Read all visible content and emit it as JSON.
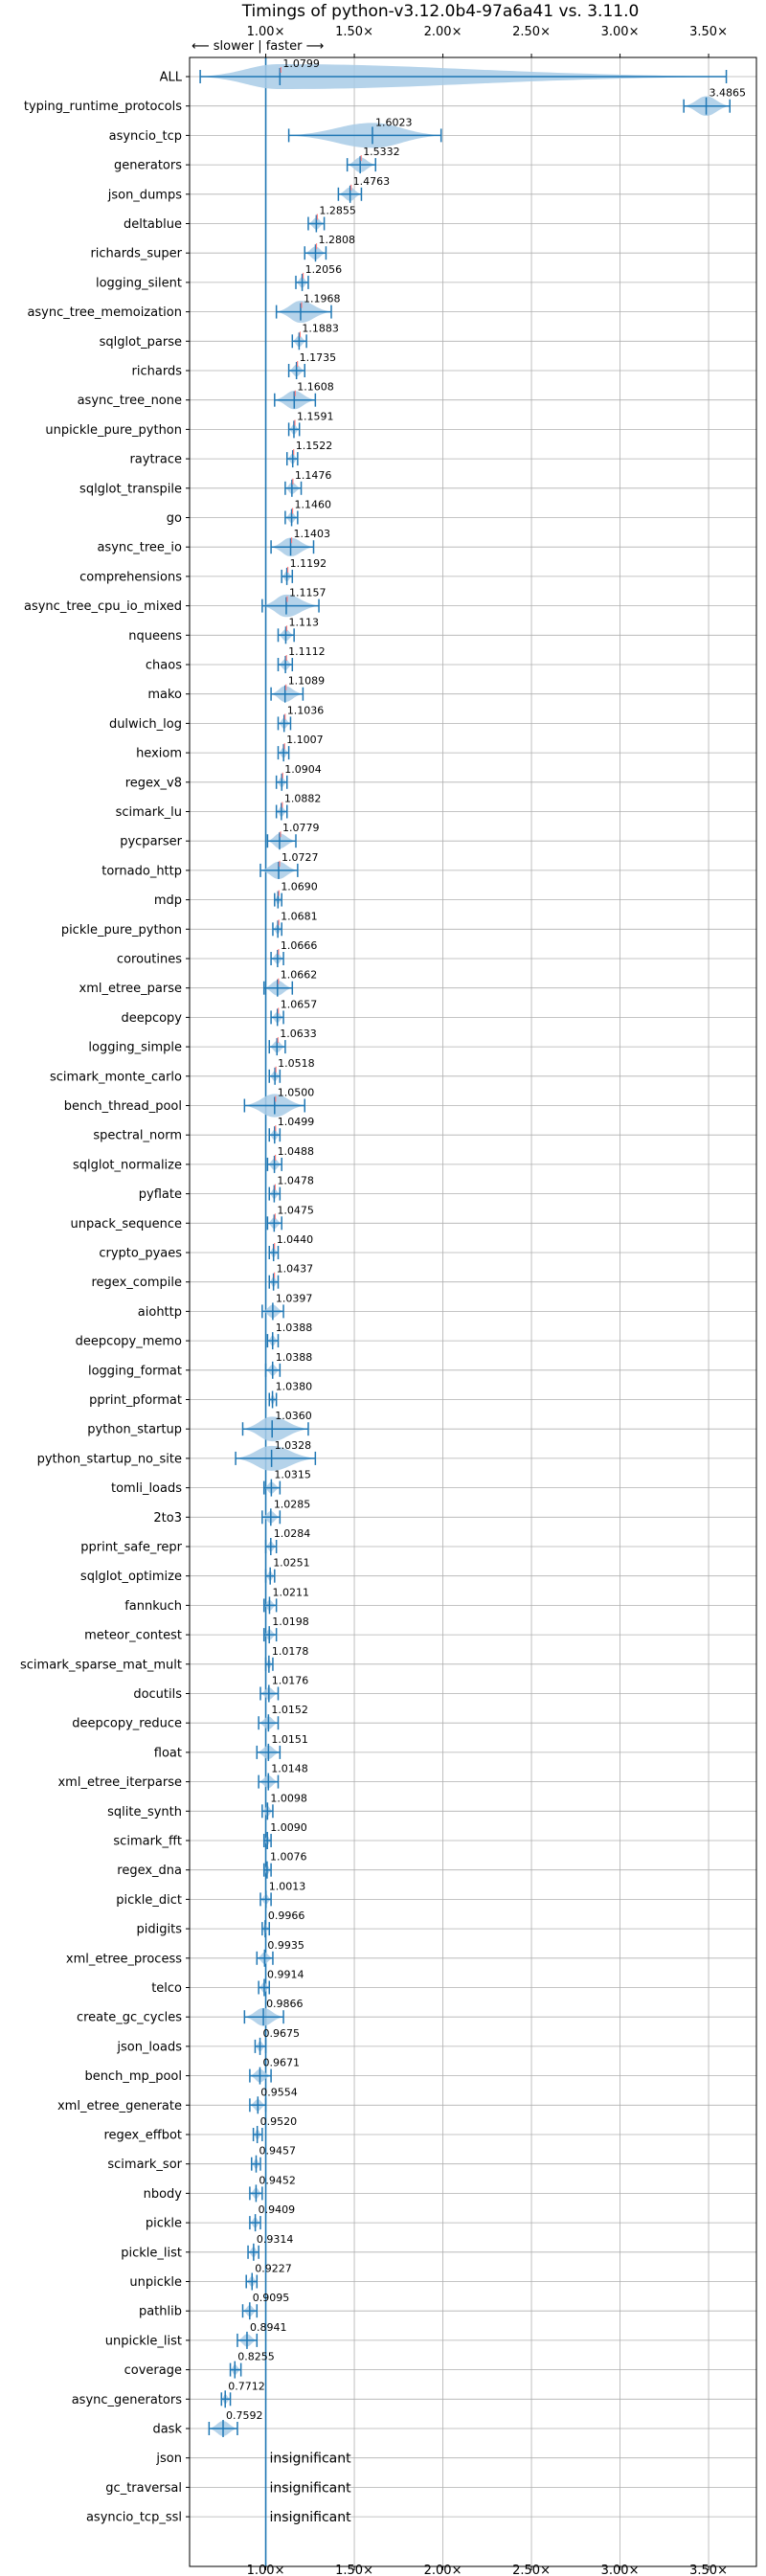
{
  "chart_data": {
    "type": "violin",
    "title": "Timings of python-v3.12.0b4-97a6a41 vs. 3.11.0",
    "direction_label": "⟵ slower | faster ⟶",
    "xlim": [
      0.57,
      3.77
    ],
    "x_ticks": [
      1.0,
      1.5,
      2.0,
      2.5,
      3.0,
      3.5
    ],
    "x_tick_labels": [
      "1.00×",
      "1.50×",
      "2.00×",
      "2.50×",
      "3.00×",
      "3.50×"
    ],
    "grid": true,
    "reference_line": 1.0,
    "insignificant_text": "insignificant",
    "colors": {
      "primary": "#1f77b4",
      "fill": "#a8cbe6",
      "grid": "#b0b0b0",
      "median_marker": "#ff7f7f"
    },
    "benchmarks": [
      {
        "name": "ALL",
        "value": 1.0799,
        "label": "1.0799",
        "range": [
          0.63,
          3.6
        ]
      },
      {
        "name": "typing_runtime_protocols",
        "value": 3.4865,
        "label": "3.4865",
        "range": [
          3.36,
          3.62
        ]
      },
      {
        "name": "asyncio_tcp",
        "value": 1.6023,
        "label": "1.6023",
        "range": [
          1.13,
          1.99
        ]
      },
      {
        "name": "generators",
        "value": 1.5332,
        "label": "1.5332",
        "range": [
          1.46,
          1.62
        ]
      },
      {
        "name": "json_dumps",
        "value": 1.4763,
        "label": "1.4763",
        "range": [
          1.41,
          1.54
        ]
      },
      {
        "name": "deltablue",
        "value": 1.2855,
        "label": "1.2855",
        "range": [
          1.24,
          1.33
        ]
      },
      {
        "name": "richards_super",
        "value": 1.2808,
        "label": "1.2808",
        "range": [
          1.22,
          1.34
        ]
      },
      {
        "name": "logging_silent",
        "value": 1.2056,
        "label": "1.2056",
        "range": [
          1.17,
          1.24
        ]
      },
      {
        "name": "async_tree_memoization",
        "value": 1.1968,
        "label": "1.1968",
        "range": [
          1.06,
          1.37
        ]
      },
      {
        "name": "sqlglot_parse",
        "value": 1.1883,
        "label": "1.1883",
        "range": [
          1.15,
          1.23
        ]
      },
      {
        "name": "richards",
        "value": 1.1735,
        "label": "1.1735",
        "range": [
          1.13,
          1.22
        ]
      },
      {
        "name": "async_tree_none",
        "value": 1.1608,
        "label": "1.1608",
        "range": [
          1.05,
          1.28
        ]
      },
      {
        "name": "unpickle_pure_python",
        "value": 1.1591,
        "label": "1.1591",
        "range": [
          1.13,
          1.19
        ]
      },
      {
        "name": "raytrace",
        "value": 1.1522,
        "label": "1.1522",
        "range": [
          1.12,
          1.18
        ]
      },
      {
        "name": "sqlglot_transpile",
        "value": 1.1476,
        "label": "1.1476",
        "range": [
          1.11,
          1.2
        ]
      },
      {
        "name": "go",
        "value": 1.146,
        "label": "1.1460",
        "range": [
          1.11,
          1.18
        ]
      },
      {
        "name": "async_tree_io",
        "value": 1.1403,
        "label": "1.1403",
        "range": [
          1.03,
          1.27
        ]
      },
      {
        "name": "comprehensions",
        "value": 1.1192,
        "label": "1.1192",
        "range": [
          1.09,
          1.15
        ]
      },
      {
        "name": "async_tree_cpu_io_mixed",
        "value": 1.1157,
        "label": "1.1157",
        "range": [
          0.98,
          1.3
        ]
      },
      {
        "name": "nqueens",
        "value": 1.113,
        "label": "1.113",
        "range": [
          1.07,
          1.16
        ]
      },
      {
        "name": "chaos",
        "value": 1.1112,
        "label": "1.1112",
        "range": [
          1.07,
          1.15
        ]
      },
      {
        "name": "mako",
        "value": 1.1089,
        "label": "1.1089",
        "range": [
          1.03,
          1.21
        ]
      },
      {
        "name": "dulwich_log",
        "value": 1.1036,
        "label": "1.1036",
        "range": [
          1.07,
          1.14
        ]
      },
      {
        "name": "hexiom",
        "value": 1.1007,
        "label": "1.1007",
        "range": [
          1.07,
          1.13
        ]
      },
      {
        "name": "regex_v8",
        "value": 1.0904,
        "label": "1.0904",
        "range": [
          1.06,
          1.12
        ]
      },
      {
        "name": "scimark_lu",
        "value": 1.0882,
        "label": "1.0882",
        "range": [
          1.06,
          1.12
        ]
      },
      {
        "name": "pycparser",
        "value": 1.0779,
        "label": "1.0779",
        "range": [
          1.01,
          1.17
        ]
      },
      {
        "name": "tornado_http",
        "value": 1.0727,
        "label": "1.0727",
        "range": [
          0.97,
          1.18
        ]
      },
      {
        "name": "mdp",
        "value": 1.069,
        "label": "1.0690",
        "range": [
          1.05,
          1.09
        ]
      },
      {
        "name": "pickle_pure_python",
        "value": 1.0681,
        "label": "1.0681",
        "range": [
          1.04,
          1.09
        ]
      },
      {
        "name": "coroutines",
        "value": 1.0666,
        "label": "1.0666",
        "range": [
          1.03,
          1.1
        ]
      },
      {
        "name": "xml_etree_parse",
        "value": 1.0662,
        "label": "1.0662",
        "range": [
          0.99,
          1.15
        ]
      },
      {
        "name": "deepcopy",
        "value": 1.0657,
        "label": "1.0657",
        "range": [
          1.03,
          1.1
        ]
      },
      {
        "name": "logging_simple",
        "value": 1.0633,
        "label": "1.0633",
        "range": [
          1.02,
          1.11
        ]
      },
      {
        "name": "scimark_monte_carlo",
        "value": 1.0518,
        "label": "1.0518",
        "range": [
          1.02,
          1.08
        ]
      },
      {
        "name": "bench_thread_pool",
        "value": 1.05,
        "label": "1.0500",
        "range": [
          0.88,
          1.22
        ]
      },
      {
        "name": "spectral_norm",
        "value": 1.0499,
        "label": "1.0499",
        "range": [
          1.02,
          1.08
        ]
      },
      {
        "name": "sqlglot_normalize",
        "value": 1.0488,
        "label": "1.0488",
        "range": [
          1.01,
          1.09
        ]
      },
      {
        "name": "pyflate",
        "value": 1.0478,
        "label": "1.0478",
        "range": [
          1.02,
          1.08
        ]
      },
      {
        "name": "unpack_sequence",
        "value": 1.0475,
        "label": "1.0475",
        "range": [
          1.01,
          1.09
        ]
      },
      {
        "name": "crypto_pyaes",
        "value": 1.044,
        "label": "1.0440",
        "range": [
          1.02,
          1.07
        ]
      },
      {
        "name": "regex_compile",
        "value": 1.0437,
        "label": "1.0437",
        "range": [
          1.02,
          1.07
        ]
      },
      {
        "name": "aiohttp",
        "value": 1.0397,
        "label": "1.0397",
        "range": [
          0.98,
          1.1
        ]
      },
      {
        "name": "deepcopy_memo",
        "value": 1.0388,
        "label": "1.0388",
        "range": [
          1.01,
          1.07
        ]
      },
      {
        "name": "logging_format",
        "value": 1.0388,
        "label": "1.0388",
        "range": [
          1.0,
          1.08
        ]
      },
      {
        "name": "pprint_pformat",
        "value": 1.038,
        "label": "1.0380",
        "range": [
          1.02,
          1.06
        ]
      },
      {
        "name": "python_startup",
        "value": 1.036,
        "label": "1.0360",
        "range": [
          0.87,
          1.24
        ]
      },
      {
        "name": "python_startup_no_site",
        "value": 1.0328,
        "label": "1.0328",
        "range": [
          0.83,
          1.28
        ]
      },
      {
        "name": "tomli_loads",
        "value": 1.0315,
        "label": "1.0315",
        "range": [
          0.99,
          1.08
        ]
      },
      {
        "name": "2to3",
        "value": 1.0285,
        "label": "1.0285",
        "range": [
          0.98,
          1.08
        ]
      },
      {
        "name": "pprint_safe_repr",
        "value": 1.0284,
        "label": "1.0284",
        "range": [
          1.0,
          1.06
        ]
      },
      {
        "name": "sqlglot_optimize",
        "value": 1.0251,
        "label": "1.0251",
        "range": [
          1.0,
          1.05
        ]
      },
      {
        "name": "fannkuch",
        "value": 1.0211,
        "label": "1.0211",
        "range": [
          0.99,
          1.06
        ]
      },
      {
        "name": "meteor_contest",
        "value": 1.0198,
        "label": "1.0198",
        "range": [
          0.99,
          1.06
        ]
      },
      {
        "name": "scimark_sparse_mat_mult",
        "value": 1.0178,
        "label": "1.0178",
        "range": [
          1.0,
          1.04
        ]
      },
      {
        "name": "docutils",
        "value": 1.0176,
        "label": "1.0176",
        "range": [
          0.97,
          1.07
        ]
      },
      {
        "name": "deepcopy_reduce",
        "value": 1.0152,
        "label": "1.0152",
        "range": [
          0.96,
          1.07
        ]
      },
      {
        "name": "float",
        "value": 1.0151,
        "label": "1.0151",
        "range": [
          0.95,
          1.08
        ]
      },
      {
        "name": "xml_etree_iterparse",
        "value": 1.0148,
        "label": "1.0148",
        "range": [
          0.96,
          1.07
        ]
      },
      {
        "name": "sqlite_synth",
        "value": 1.0098,
        "label": "1.0098",
        "range": [
          0.98,
          1.04
        ]
      },
      {
        "name": "scimark_fft",
        "value": 1.009,
        "label": "1.0090",
        "range": [
          0.99,
          1.03
        ]
      },
      {
        "name": "regex_dna",
        "value": 1.0076,
        "label": "1.0076",
        "range": [
          0.99,
          1.03
        ]
      },
      {
        "name": "pickle_dict",
        "value": 1.0013,
        "label": "1.0013",
        "range": [
          0.97,
          1.03
        ]
      },
      {
        "name": "pidigits",
        "value": 0.9966,
        "label": "0.9966",
        "range": [
          0.98,
          1.02
        ]
      },
      {
        "name": "xml_etree_process",
        "value": 0.9935,
        "label": "0.9935",
        "range": [
          0.95,
          1.04
        ]
      },
      {
        "name": "telco",
        "value": 0.9914,
        "label": "0.9914",
        "range": [
          0.96,
          1.02
        ]
      },
      {
        "name": "create_gc_cycles",
        "value": 0.9866,
        "label": "0.9866",
        "range": [
          0.88,
          1.1
        ]
      },
      {
        "name": "json_loads",
        "value": 0.9675,
        "label": "0.9675",
        "range": [
          0.94,
          1.0
        ]
      },
      {
        "name": "bench_mp_pool",
        "value": 0.9671,
        "label": "0.9671",
        "range": [
          0.91,
          1.03
        ]
      },
      {
        "name": "xml_etree_generate",
        "value": 0.9554,
        "label": "0.9554",
        "range": [
          0.91,
          1.0
        ]
      },
      {
        "name": "regex_effbot",
        "value": 0.952,
        "label": "0.9520",
        "range": [
          0.93,
          0.98
        ]
      },
      {
        "name": "scimark_sor",
        "value": 0.9457,
        "label": "0.9457",
        "range": [
          0.92,
          0.97
        ]
      },
      {
        "name": "nbody",
        "value": 0.9452,
        "label": "0.9452",
        "range": [
          0.91,
          0.98
        ]
      },
      {
        "name": "pickle",
        "value": 0.9409,
        "label": "0.9409",
        "range": [
          0.91,
          0.97
        ]
      },
      {
        "name": "pickle_list",
        "value": 0.9314,
        "label": "0.9314",
        "range": [
          0.9,
          0.96
        ]
      },
      {
        "name": "unpickle",
        "value": 0.9227,
        "label": "0.9227",
        "range": [
          0.89,
          0.95
        ]
      },
      {
        "name": "pathlib",
        "value": 0.9095,
        "label": "0.9095",
        "range": [
          0.87,
          0.95
        ]
      },
      {
        "name": "unpickle_list",
        "value": 0.8941,
        "label": "0.8941",
        "range": [
          0.84,
          0.95
        ]
      },
      {
        "name": "coverage",
        "value": 0.8255,
        "label": "0.8255",
        "range": [
          0.8,
          0.86
        ]
      },
      {
        "name": "async_generators",
        "value": 0.7712,
        "label": "0.7712",
        "range": [
          0.75,
          0.8
        ]
      },
      {
        "name": "dask",
        "value": 0.7592,
        "label": "0.7592",
        "range": [
          0.68,
          0.84
        ]
      },
      {
        "name": "json",
        "value": null,
        "label": "insignificant",
        "range": null
      },
      {
        "name": "gc_traversal",
        "value": null,
        "label": "insignificant",
        "range": null
      },
      {
        "name": "asyncio_tcp_ssl",
        "value": null,
        "label": "insignificant",
        "range": null
      }
    ]
  }
}
